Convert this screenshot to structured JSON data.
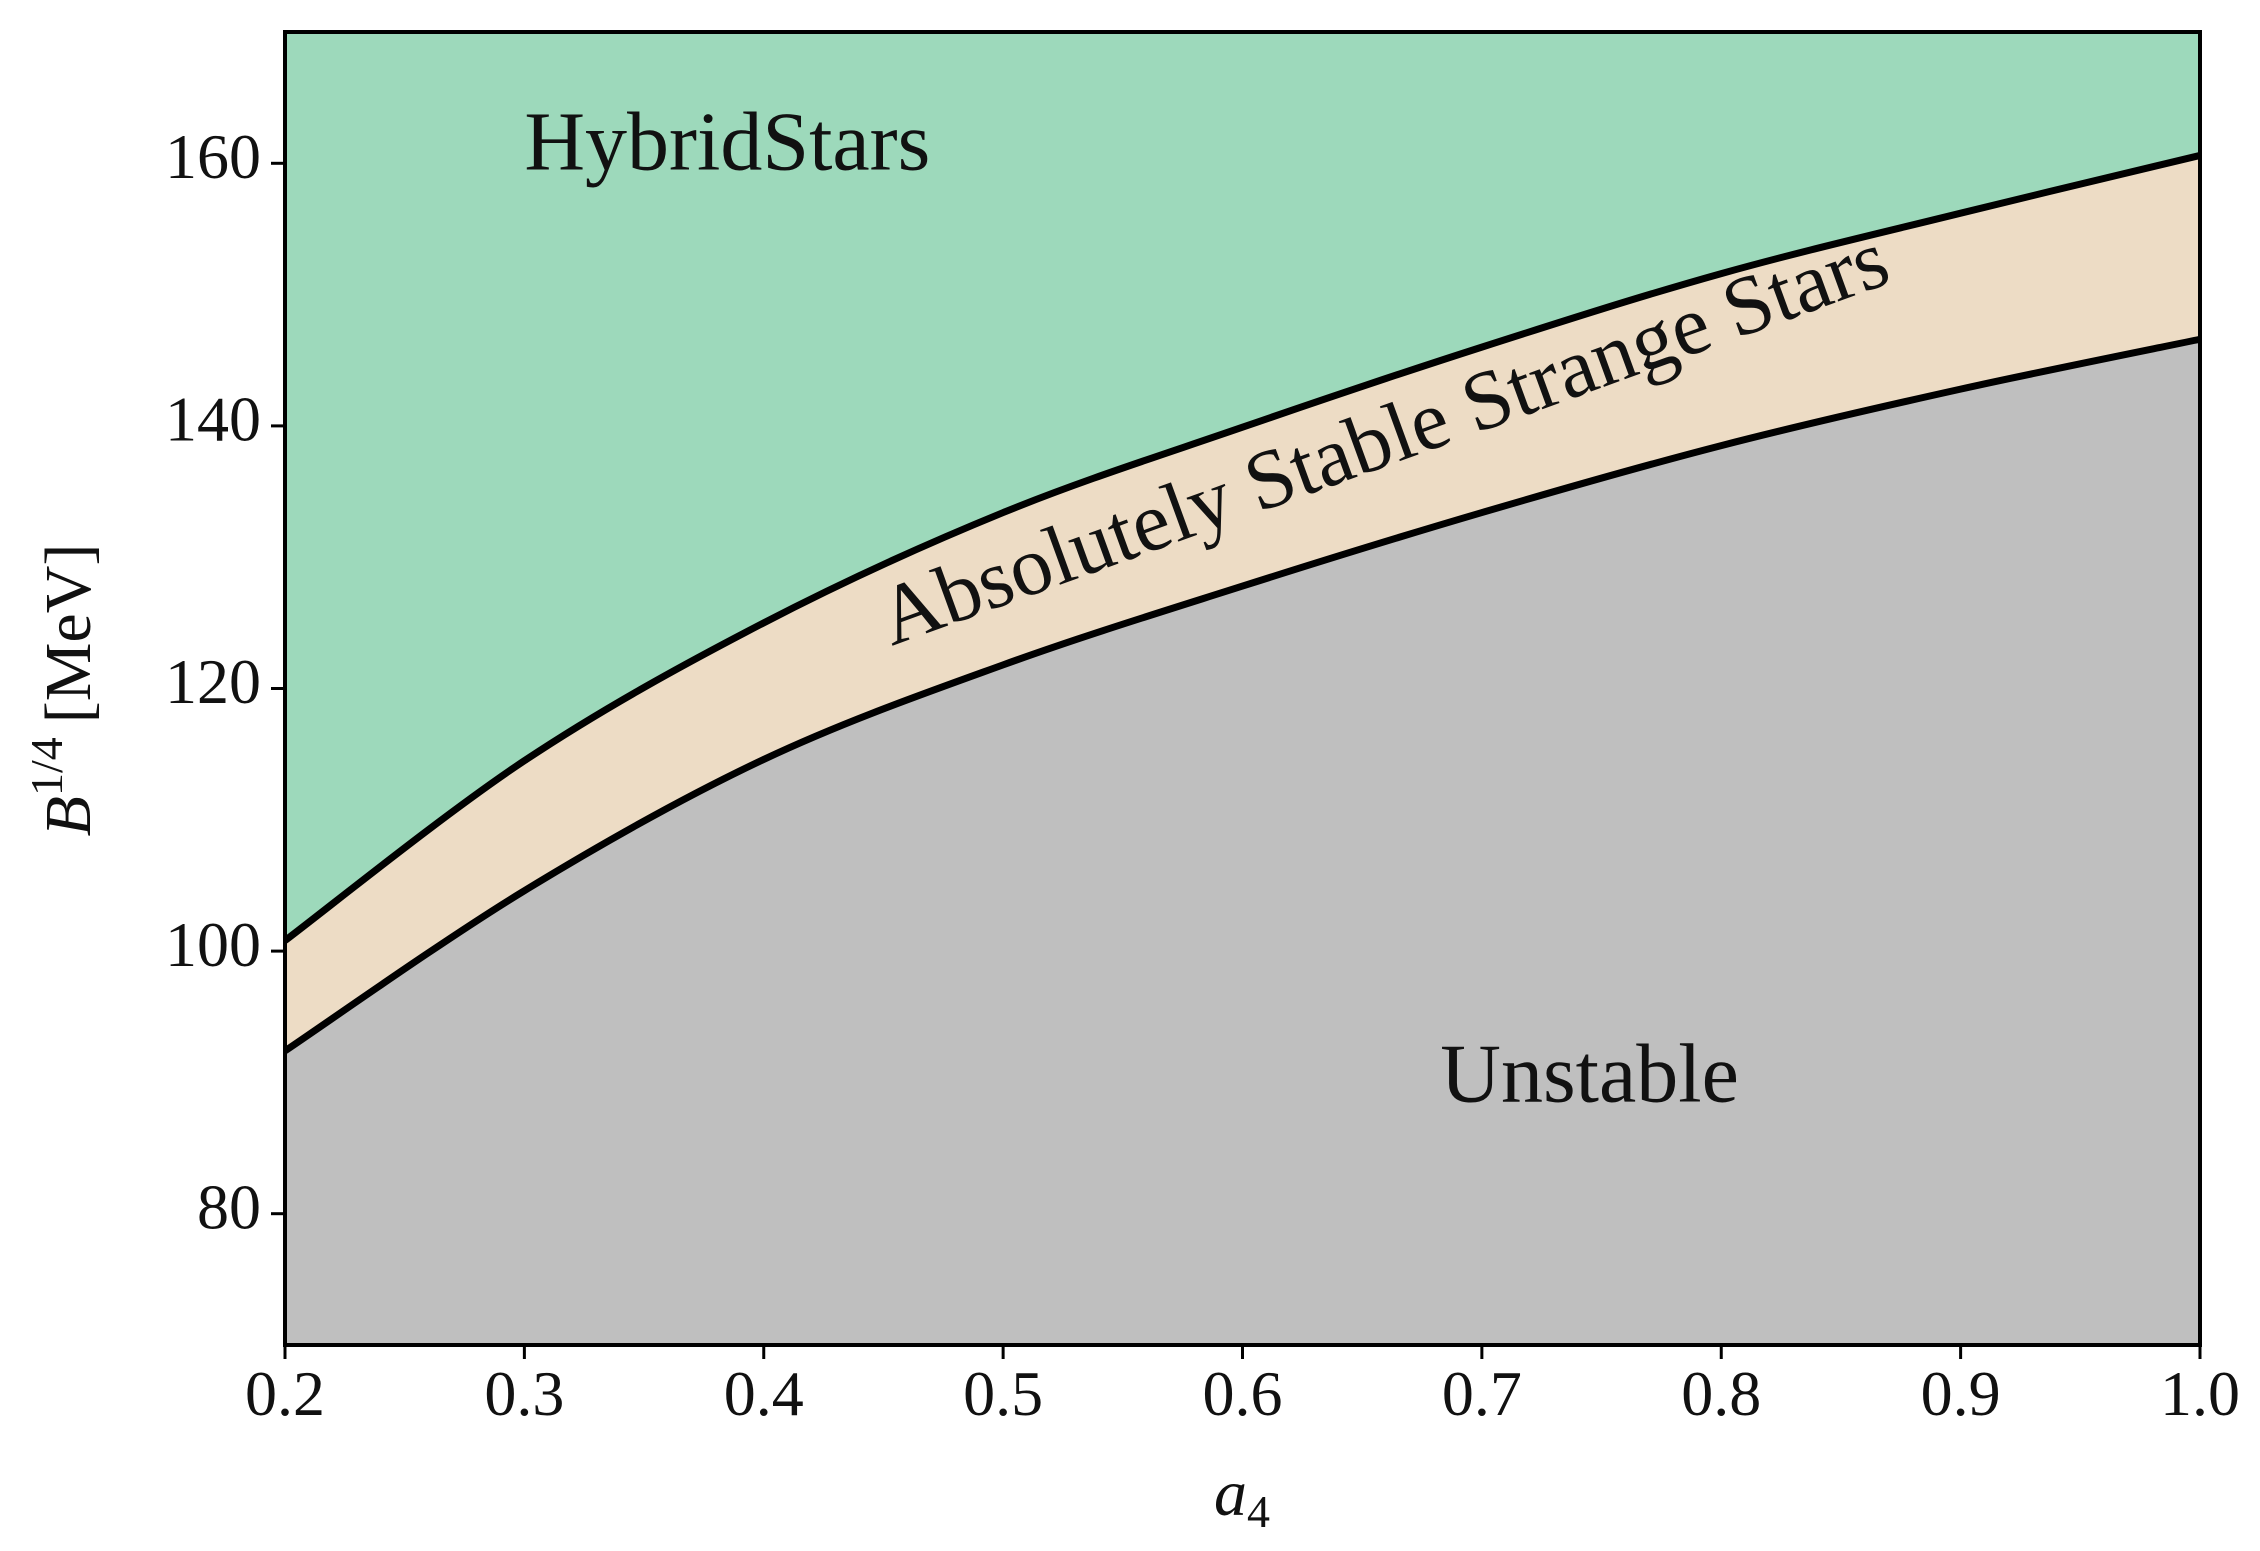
{
  "chart_data": {
    "type": "area",
    "x": [
      0.2,
      0.3,
      0.4,
      0.5,
      0.6,
      0.7,
      0.8,
      0.9,
      1.0
    ],
    "series": [
      {
        "color": "#000000",
        "values": [
          100.8,
          114.5,
          125.0,
          133.4,
          139.9,
          146.0,
          151.6,
          156.2,
          160.6
        ]
      },
      {
        "color": "#000000",
        "values": [
          92.4,
          104.6,
          114.6,
          121.8,
          127.8,
          133.4,
          138.5,
          142.8,
          146.6
        ]
      }
    ],
    "regions": [
      {
        "label": "HybridStars",
        "color": "#9dd9bb"
      },
      {
        "label": "Absolutely Stable Strange Stars",
        "color": "#eddcc5"
      },
      {
        "label": "Unstable",
        "color": "#bfbfbf"
      }
    ],
    "xlabel": {
      "base": "a",
      "sub": "4"
    },
    "ylabel": {
      "base": "B",
      "sup": "1/4",
      "unit": "[MeV]"
    },
    "xlim": [
      0.2,
      1.0
    ],
    "ylim": [
      70,
      170
    ],
    "xticks": [
      0.2,
      0.3,
      0.4,
      0.5,
      0.6,
      0.7,
      0.8,
      0.9,
      {
        "value": 1.0,
        "label": "1.0"
      }
    ],
    "yticks": [
      80,
      100,
      120,
      140,
      160
    ],
    "grid": false
  }
}
